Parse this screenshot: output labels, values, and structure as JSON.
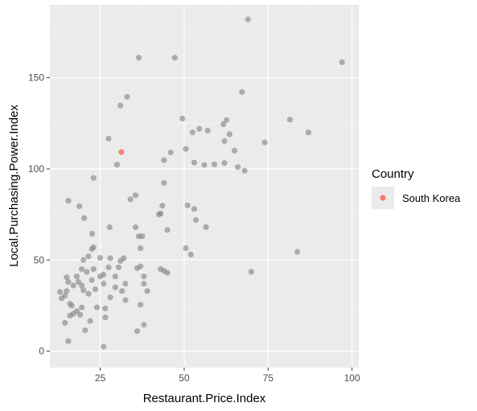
{
  "chart_data": {
    "type": "scatter",
    "xlabel": "Restaurant.Price.Index",
    "ylabel": "Local.Purchasing.Power.Index",
    "xlim": [
      10,
      102
    ],
    "ylim": [
      -9,
      190
    ],
    "x_ticks": [
      25,
      50,
      75,
      100
    ],
    "y_ticks": [
      0,
      50,
      100,
      150
    ],
    "grid": true,
    "legend": {
      "title": "Country",
      "position": "right",
      "entries": [
        {
          "label": "South Korea",
          "color": "#f8766d"
        }
      ]
    },
    "highlight": {
      "name": "South Korea",
      "x": 31.3,
      "y": 109.2,
      "color": "#f8766d"
    },
    "background_point_color": "#808080",
    "points": [
      [
        69.0,
        182.0
      ],
      [
        36.5,
        161.0
      ],
      [
        47.2,
        161.0
      ],
      [
        97.0,
        158.5
      ],
      [
        67.2,
        142.2
      ],
      [
        31.0,
        134.8
      ],
      [
        33.0,
        139.5
      ],
      [
        49.5,
        127.6
      ],
      [
        62.6,
        126.8
      ],
      [
        81.5,
        127.0
      ],
      [
        27.5,
        116.6
      ],
      [
        52.5,
        120.0
      ],
      [
        54.5,
        122.0
      ],
      [
        57.0,
        121.0
      ],
      [
        61.7,
        124.5
      ],
      [
        63.5,
        119.0
      ],
      [
        87.0,
        120.0
      ],
      [
        62.0,
        115.3
      ],
      [
        74.0,
        114.5
      ],
      [
        30.0,
        102.3
      ],
      [
        44.0,
        104.8
      ],
      [
        46.0,
        109.0
      ],
      [
        50.5,
        111.0
      ],
      [
        53.0,
        103.5
      ],
      [
        56.0,
        102.2
      ],
      [
        59.0,
        102.5
      ],
      [
        62.0,
        103.2
      ],
      [
        65.0,
        110.0
      ],
      [
        66.0,
        101.0
      ],
      [
        68.0,
        99.0
      ],
      [
        23.0,
        95.0
      ],
      [
        34.0,
        83.3
      ],
      [
        35.5,
        85.5
      ],
      [
        44.0,
        92.3
      ],
      [
        15.5,
        82.5
      ],
      [
        18.8,
        79.5
      ],
      [
        20.2,
        73.0
      ],
      [
        43.5,
        79.8
      ],
      [
        42.5,
        75.0
      ],
      [
        43.0,
        75.5
      ],
      [
        51.0,
        80.0
      ],
      [
        53.0,
        78.0
      ],
      [
        53.5,
        72.0
      ],
      [
        56.5,
        68.0
      ],
      [
        27.8,
        68.0
      ],
      [
        35.5,
        68.0
      ],
      [
        36.5,
        63.0
      ],
      [
        37.5,
        63.0
      ],
      [
        45.0,
        66.5
      ],
      [
        22.6,
        64.4
      ],
      [
        23.0,
        57.0
      ],
      [
        22.5,
        56.0
      ],
      [
        20.0,
        50.0
      ],
      [
        21.5,
        52.0
      ],
      [
        25.0,
        51.2
      ],
      [
        28.0,
        51.0
      ],
      [
        31.0,
        49.5
      ],
      [
        32.0,
        51.0
      ],
      [
        37.0,
        56.5
      ],
      [
        50.5,
        56.5
      ],
      [
        52.0,
        53.0
      ],
      [
        83.7,
        54.5
      ],
      [
        18.0,
        41.0
      ],
      [
        19.5,
        45.0
      ],
      [
        21.0,
        43.5
      ],
      [
        23.0,
        45.0
      ],
      [
        25.0,
        41.0
      ],
      [
        26.0,
        42.0
      ],
      [
        27.5,
        46.0
      ],
      [
        29.5,
        41.0
      ],
      [
        30.5,
        46.0
      ],
      [
        36.0,
        45.5
      ],
      [
        37.0,
        46.5
      ],
      [
        38.0,
        41.0
      ],
      [
        43.0,
        45.0
      ],
      [
        44.0,
        44.0
      ],
      [
        45.0,
        43.0
      ],
      [
        70.0,
        43.5
      ],
      [
        15.0,
        40.5
      ],
      [
        15.5,
        38.0
      ],
      [
        17.0,
        36.0
      ],
      [
        18.5,
        38.0
      ],
      [
        19.5,
        36.0
      ],
      [
        20.0,
        33.5
      ],
      [
        21.5,
        31.5
      ],
      [
        22.5,
        39.0
      ],
      [
        23.5,
        34.0
      ],
      [
        26.0,
        37.0
      ],
      [
        29.5,
        35.0
      ],
      [
        31.5,
        33.0
      ],
      [
        32.5,
        37.0
      ],
      [
        38.0,
        37.0
      ],
      [
        13.0,
        32.5
      ],
      [
        13.5,
        29.0
      ],
      [
        14.5,
        30.5
      ],
      [
        15.0,
        33.0
      ],
      [
        16.0,
        26.0
      ],
      [
        16.5,
        25.0
      ],
      [
        18.0,
        22.0
      ],
      [
        19.5,
        24.0
      ],
      [
        24.0,
        24.0
      ],
      [
        26.5,
        23.5
      ],
      [
        28.0,
        29.5
      ],
      [
        32.5,
        28.0
      ],
      [
        37.0,
        25.5
      ],
      [
        39.0,
        33.0
      ],
      [
        14.5,
        15.5
      ],
      [
        16.0,
        19.5
      ],
      [
        17.0,
        20.5
      ],
      [
        19.0,
        20.0
      ],
      [
        20.5,
        11.5
      ],
      [
        22.0,
        16.5
      ],
      [
        26.5,
        18.5
      ],
      [
        38.0,
        14.5
      ],
      [
        36.0,
        11.0
      ],
      [
        15.5,
        5.5
      ],
      [
        26.0,
        2.5
      ]
    ]
  }
}
